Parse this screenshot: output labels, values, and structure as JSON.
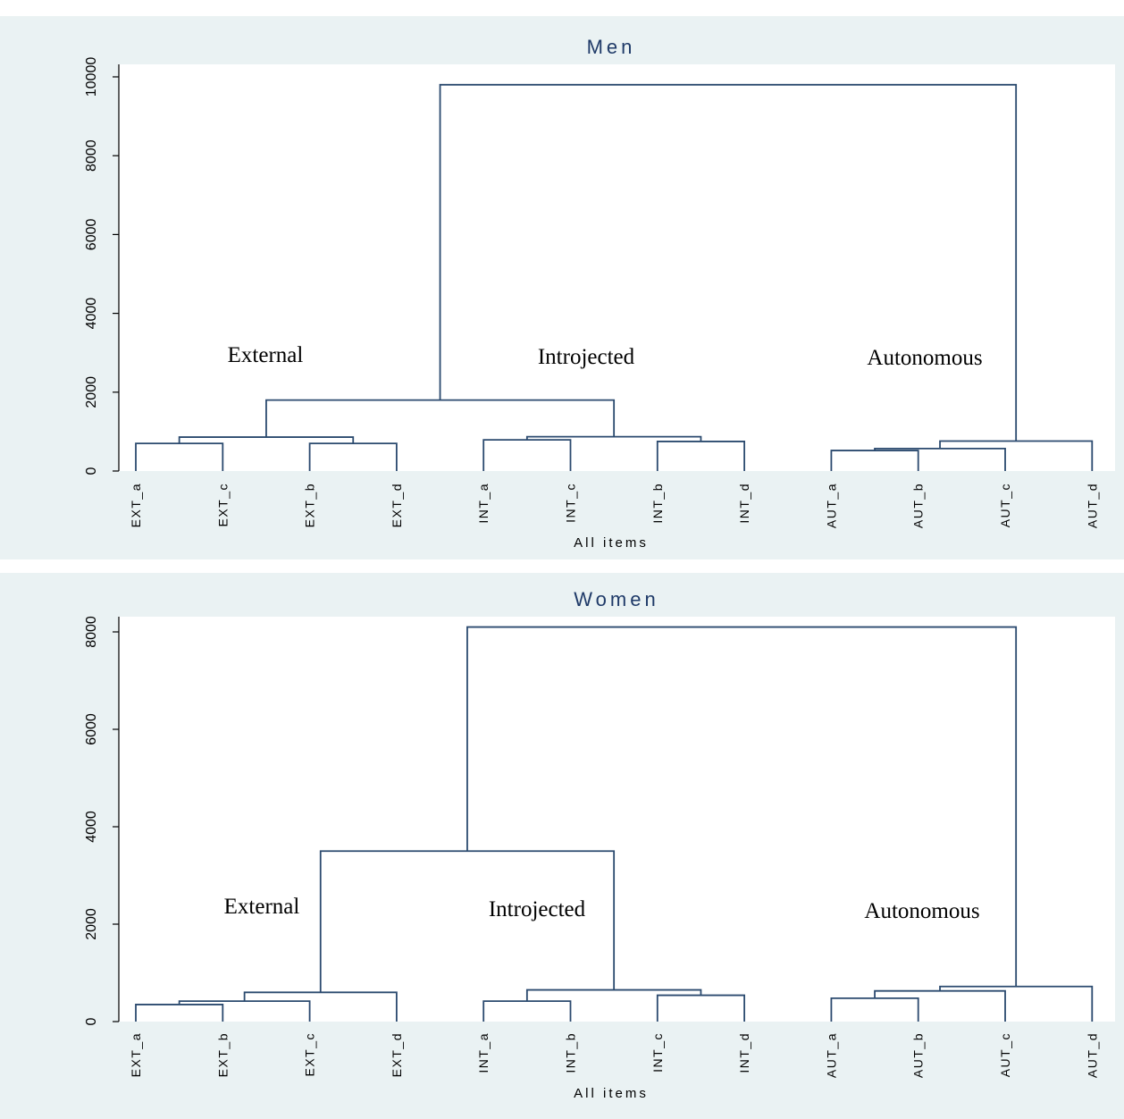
{
  "chart_data": [
    {
      "type": "dendrogram",
      "title": "Men",
      "xlabel": "All items",
      "ylabel": "",
      "ylim": [
        0,
        10000
      ],
      "yticks": [
        0,
        2000,
        4000,
        6000,
        8000,
        10000
      ],
      "leaves": [
        "EXT_a",
        "EXT_c",
        "EXT_b",
        "EXT_d",
        "INT_a",
        "INT_c",
        "INT_b",
        "INT_d",
        "AUT_a",
        "AUT_b",
        "AUT_c",
        "AUT_d"
      ],
      "merges": [
        {
          "left": "EXT_a",
          "right": "EXT_c",
          "height": 700
        },
        {
          "left": "EXT_b",
          "right": "EXT_d",
          "height": 700
        },
        {
          "left": "INT_a",
          "right": "INT_c",
          "height": 790
        },
        {
          "left": "INT_b",
          "right": "INT_d",
          "height": 750
        },
        {
          "left": "AUT_a",
          "right": "AUT_b",
          "height": 520
        },
        {
          "left": "m1",
          "right": "m2",
          "height": 860
        },
        {
          "left": "m3",
          "right": "m4",
          "height": 870
        },
        {
          "left": "m5",
          "right": "AUT_c",
          "height": 570
        },
        {
          "left": "m6",
          "right": "m7",
          "height": 1800
        },
        {
          "left": "m8",
          "right": "AUT_d",
          "height": 760
        },
        {
          "left": "m9",
          "right": "m10",
          "height": 9800
        }
      ],
      "annotations": [
        "External",
        "Introjected",
        "Autonomous"
      ]
    },
    {
      "type": "dendrogram",
      "title": "Women",
      "xlabel": "All items",
      "ylabel": "",
      "ylim": [
        0,
        8000
      ],
      "yticks": [
        0,
        2000,
        4000,
        6000,
        8000
      ],
      "leaves": [
        "EXT_a",
        "EXT_b",
        "EXT_c",
        "EXT_d",
        "INT_a",
        "INT_b",
        "INT_c",
        "INT_d",
        "AUT_a",
        "AUT_b",
        "AUT_c",
        "AUT_d"
      ],
      "merges": [
        {
          "left": "EXT_a",
          "right": "EXT_b",
          "height": 350
        },
        {
          "left": "m1",
          "right": "EXT_c",
          "height": 420
        },
        {
          "left": "m2",
          "right": "EXT_d",
          "height": 600
        },
        {
          "left": "INT_a",
          "right": "INT_b",
          "height": 420
        },
        {
          "left": "INT_c",
          "right": "INT_d",
          "height": 540
        },
        {
          "left": "m4",
          "right": "m5",
          "height": 650
        },
        {
          "left": "m3",
          "right": "m6",
          "height": 3500
        },
        {
          "left": "AUT_a",
          "right": "AUT_b",
          "height": 480
        },
        {
          "left": "m8",
          "right": "AUT_c",
          "height": 630
        },
        {
          "left": "m9",
          "right": "AUT_d",
          "height": 720
        },
        {
          "left": "m7",
          "right": "m10",
          "height": 8100
        }
      ],
      "annotations": [
        "External",
        "Introjected",
        "Autonomous"
      ]
    }
  ]
}
